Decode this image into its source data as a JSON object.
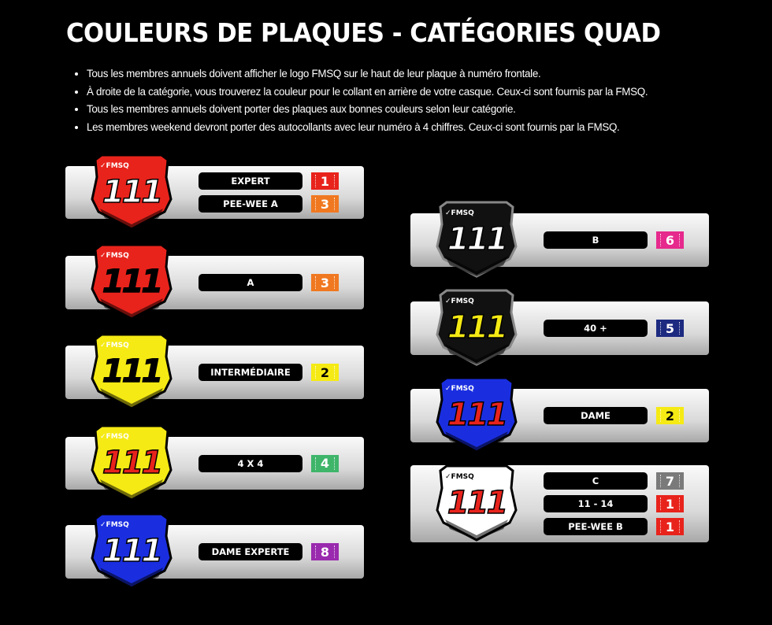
{
  "title": "COULEURS DE PLAQUES - CATÉGORIES QUAD",
  "bullets": [
    "Tous les membres annuels doivent afficher le logo FMSQ sur le haut de leur plaque à numéro frontale.",
    "À droite de la catégorie, vous trouverez la couleur pour le collant en arrière de votre casque. Ceux-ci sont fournis par la FMSQ.",
    "Tous les membres annuels doivent porter des plaques aux bonnes couleurs selon leur catégorie.",
    "Les membres weekend devront porter des autocollants avec leur numéro à 4 chiffres. Ceux-ci sont fournis par la FMSQ."
  ],
  "plate_logo": "FMSQ",
  "plate_number": "111",
  "cards": [
    {
      "plate_bg": "#e8231c",
      "plate_num": "#ffffff",
      "rows": [
        {
          "label": "EXPERT",
          "badge": "1",
          "badge_color": "#e8231c"
        },
        {
          "label": "PEE-WEE A",
          "badge": "3",
          "badge_color": "#f07820"
        }
      ]
    },
    {
      "plate_bg": "#e8231c",
      "plate_num": "#000000",
      "rows": [
        {
          "label": "A",
          "badge": "3",
          "badge_color": "#f07820"
        }
      ]
    },
    {
      "plate_bg": "#f5ea14",
      "plate_num": "#000000",
      "rows": [
        {
          "label": "INTERMÉDIAIRE",
          "badge": "2",
          "badge_color": "#f5ea14"
        }
      ]
    },
    {
      "plate_bg": "#f5ea14",
      "plate_num": "#e8231c",
      "rows": [
        {
          "label": "4 X 4",
          "badge": "4",
          "badge_color": "#3fb56a"
        }
      ]
    },
    {
      "plate_bg": "#1a2ee0",
      "plate_num": "#ffffff",
      "rows": [
        {
          "label": "DAME EXPERTE",
          "badge": "8",
          "badge_color": "#9a2aae"
        }
      ]
    },
    {
      "plate_bg": "#111111",
      "plate_num": "#ffffff",
      "rows": [
        {
          "label": "B",
          "badge": "6",
          "badge_color": "#e6298c"
        }
      ]
    },
    {
      "plate_bg": "#111111",
      "plate_num": "#f5ea14",
      "rows": [
        {
          "label": "40 +",
          "badge": "5",
          "badge_color": "#1c2a80"
        }
      ]
    },
    {
      "plate_bg": "#1a2ee0",
      "plate_num": "#e8231c",
      "rows": [
        {
          "label": "DAME",
          "badge": "2",
          "badge_color": "#f5ea14"
        }
      ]
    },
    {
      "plate_bg": "#ffffff",
      "plate_num": "#e8231c",
      "rows": [
        {
          "label": "C",
          "badge": "7",
          "badge_color": "#7a7a7a"
        },
        {
          "label": "11 - 14",
          "badge": "1",
          "badge_color": "#e8231c"
        },
        {
          "label": "PEE-WEE B",
          "badge": "1",
          "badge_color": "#e8231c"
        }
      ]
    }
  ]
}
